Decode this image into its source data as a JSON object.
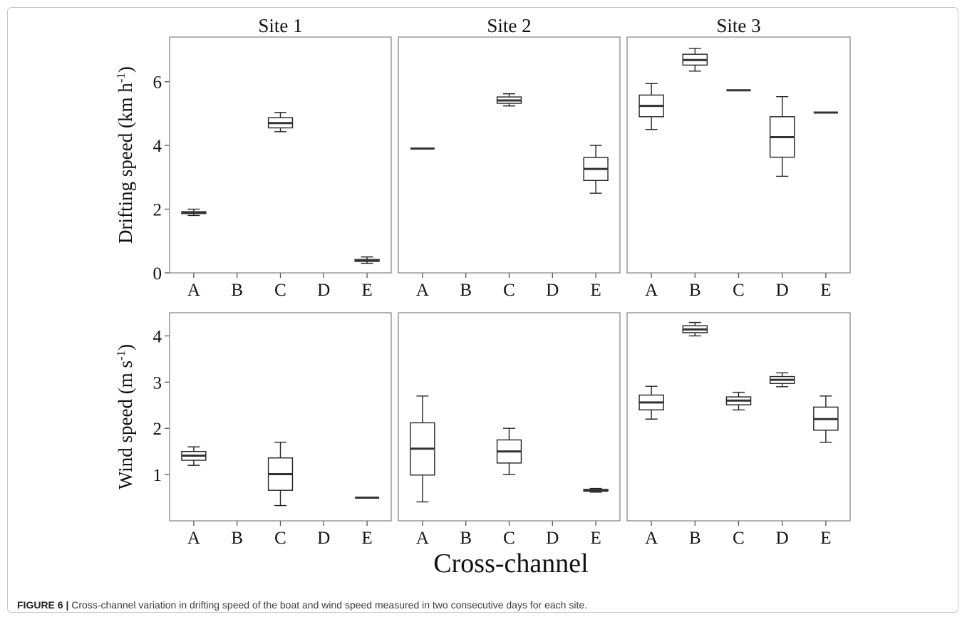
{
  "figure": {
    "caption_label": "FIGURE 6 |",
    "caption_text": " Cross-channel variation in drifting speed of the boat and wind speed measured in two consecutive days for each site."
  },
  "chart_data": {
    "type": "boxplot",
    "facets_columns": [
      "Site 1",
      "Site 2",
      "Site 3"
    ],
    "xlabel": "Cross-channel",
    "categories": [
      "A",
      "B",
      "C",
      "D",
      "E"
    ],
    "rows": [
      {
        "id": "drift",
        "ylabel_main": "Drifting speed (km h",
        "ylabel_sup": "-1",
        "ylabel_end": ")",
        "ylim": [
          0,
          7.4
        ],
        "yticks": [
          0,
          2,
          4,
          6
        ],
        "panels": [
          {
            "site": "Site 1",
            "boxes": [
              {
                "cat": "A",
                "min": 1.8,
                "q1": 1.86,
                "median": 1.89,
                "q3": 1.92,
                "max": 2.0
              },
              {
                "cat": "C",
                "min": 4.43,
                "q1": 4.55,
                "median": 4.7,
                "q3": 4.87,
                "max": 5.03
              },
              {
                "cat": "E",
                "min": 0.3,
                "q1": 0.36,
                "median": 0.39,
                "q3": 0.42,
                "max": 0.5
              }
            ]
          },
          {
            "site": "Site 2",
            "boxes": [
              {
                "cat": "A",
                "min": 3.9,
                "q1": 3.9,
                "median": 3.9,
                "q3": 3.9,
                "max": 3.9
              },
              {
                "cat": "C",
                "min": 5.24,
                "q1": 5.32,
                "median": 5.41,
                "q3": 5.52,
                "max": 5.62
              },
              {
                "cat": "E",
                "min": 2.5,
                "q1": 2.9,
                "median": 3.26,
                "q3": 3.62,
                "max": 4.0
              }
            ]
          },
          {
            "site": "Site 3",
            "boxes": [
              {
                "cat": "A",
                "min": 4.5,
                "q1": 4.9,
                "median": 5.24,
                "q3": 5.58,
                "max": 5.94
              },
              {
                "cat": "B",
                "min": 6.33,
                "q1": 6.52,
                "median": 6.68,
                "q3": 6.86,
                "max": 7.04
              },
              {
                "cat": "C",
                "min": 5.73,
                "q1": 5.73,
                "median": 5.73,
                "q3": 5.73,
                "max": 5.73
              },
              {
                "cat": "D",
                "min": 3.03,
                "q1": 3.63,
                "median": 4.26,
                "q3": 4.9,
                "max": 5.53
              },
              {
                "cat": "E",
                "min": 5.03,
                "q1": 5.03,
                "median": 5.03,
                "q3": 5.03,
                "max": 5.03
              }
            ]
          }
        ]
      },
      {
        "id": "wind",
        "ylabel_main": "Wind speed (m s",
        "ylabel_sup": "-1",
        "ylabel_end": ")",
        "ylim": [
          0.0,
          4.5
        ],
        "yticks": [
          1,
          2,
          3,
          4
        ],
        "panels": [
          {
            "site": "Site 1",
            "boxes": [
              {
                "cat": "A",
                "min": 1.2,
                "q1": 1.31,
                "median": 1.41,
                "q3": 1.5,
                "max": 1.6
              },
              {
                "cat": "C",
                "min": 0.33,
                "q1": 0.66,
                "median": 1.01,
                "q3": 1.36,
                "max": 1.7
              },
              {
                "cat": "E",
                "min": 0.5,
                "q1": 0.5,
                "median": 0.5,
                "q3": 0.5,
                "max": 0.5
              }
            ]
          },
          {
            "site": "Site 2",
            "boxes": [
              {
                "cat": "A",
                "min": 0.41,
                "q1": 0.99,
                "median": 1.56,
                "q3": 2.12,
                "max": 2.7
              },
              {
                "cat": "C",
                "min": 1.0,
                "q1": 1.25,
                "median": 1.5,
                "q3": 1.75,
                "max": 2.0
              },
              {
                "cat": "E",
                "min": 0.62,
                "q1": 0.64,
                "median": 0.66,
                "q3": 0.68,
                "max": 0.7
              }
            ]
          },
          {
            "site": "Site 3",
            "boxes": [
              {
                "cat": "A",
                "min": 2.2,
                "q1": 2.4,
                "median": 2.56,
                "q3": 2.72,
                "max": 2.91
              },
              {
                "cat": "B",
                "min": 4.0,
                "q1": 4.07,
                "median": 4.14,
                "q3": 4.22,
                "max": 4.29
              },
              {
                "cat": "C",
                "min": 2.4,
                "q1": 2.51,
                "median": 2.6,
                "q3": 2.68,
                "max": 2.78
              },
              {
                "cat": "D",
                "min": 2.9,
                "q1": 2.97,
                "median": 3.05,
                "q3": 3.12,
                "max": 3.2
              },
              {
                "cat": "E",
                "min": 1.7,
                "q1": 1.96,
                "median": 2.2,
                "q3": 2.46,
                "max": 2.7
              }
            ]
          }
        ]
      }
    ],
    "colors": {
      "box_stroke": "#222222",
      "median": "#333333",
      "panel_border": "#8a8a8a"
    }
  }
}
